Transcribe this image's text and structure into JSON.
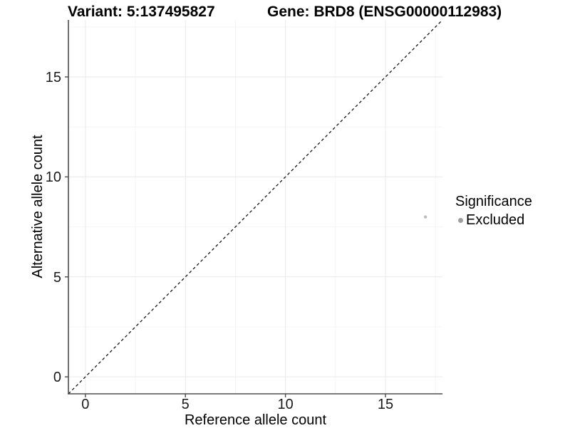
{
  "titles": {
    "variant": "Variant: 5:137495827",
    "gene": "Gene: BRD8 (ENSG00000112983)"
  },
  "legend": {
    "title": "Significance",
    "entries": [
      {
        "label": "Excluded",
        "color": "#9e9e9e"
      }
    ]
  },
  "colors": {
    "background": "#ffffff",
    "grid_major": "#e9e9e9",
    "grid_minor": "#f4f4f4",
    "axis_line": "#4d4d4d",
    "tick_mark": "#4d4d4d",
    "reference_line": "#000000"
  },
  "chart_data": {
    "type": "scatter",
    "title": "Variant: 5:137495827 — Gene: BRD8 (ENSG00000112983)",
    "xlabel": "Reference allele count",
    "ylabel": "Alternative allele count",
    "xlim": [
      -0.85,
      17.85
    ],
    "ylim": [
      -0.85,
      17.85
    ],
    "x_ticks": [
      0,
      5,
      10,
      15
    ],
    "y_ticks": [
      0,
      5,
      10,
      15
    ],
    "x_minor_ticks": [
      2.5,
      7.5,
      12.5,
      17.5
    ],
    "y_minor_ticks": [
      2.5,
      7.5,
      12.5,
      17.5
    ],
    "grid": true,
    "legend_position": "right",
    "legend_title": "Significance",
    "series": [
      {
        "name": "Excluded",
        "color": "#bdbdbd",
        "point_size": 2.2,
        "points": [
          {
            "x": 17,
            "y": 8
          }
        ]
      }
    ],
    "reference_line": {
      "type": "identity",
      "equation": "y = x",
      "style": "dashed"
    }
  }
}
